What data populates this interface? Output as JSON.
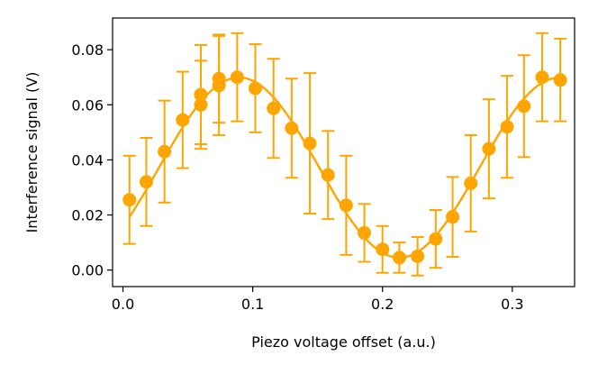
{
  "chart_data": {
    "type": "scatter",
    "title": "",
    "xlabel": "Piezo voltage offset (a.u.)",
    "ylabel": "Interference signal (V)",
    "xlim": [
      -0.008,
      0.348
    ],
    "ylim": [
      -0.006,
      0.0915
    ],
    "xticks": [
      0.0,
      0.1,
      0.2,
      0.3
    ],
    "xtick_labels": [
      "0.0",
      "0.1",
      "0.2",
      "0.3"
    ],
    "yticks": [
      0.0,
      0.02,
      0.04,
      0.06,
      0.08
    ],
    "ytick_labels": [
      "0.00",
      "0.02",
      "0.04",
      "0.06",
      "0.08"
    ],
    "grid": false,
    "legend": "none",
    "color": "#ffa500",
    "series": [
      {
        "x": [
          0.005,
          0.018,
          0.032,
          0.046,
          0.06,
          0.06,
          0.074,
          0.074,
          0.088,
          0.102,
          0.116,
          0.13,
          0.144,
          0.158,
          0.172,
          0.186,
          0.2,
          0.213,
          0.227,
          0.241,
          0.254,
          0.268,
          0.282,
          0.296,
          0.309,
          0.323,
          0.337
        ],
        "y": [
          0.0255,
          0.032,
          0.043,
          0.0545,
          0.06,
          0.0637,
          0.067,
          0.0695,
          0.07,
          0.066,
          0.0587,
          0.0515,
          0.046,
          0.0345,
          0.0235,
          0.0135,
          0.0075,
          0.0045,
          0.005,
          0.0113,
          0.0193,
          0.0315,
          0.044,
          0.052,
          0.0595,
          0.07,
          0.069
        ],
        "yerr": [
          0.016,
          0.016,
          0.0185,
          0.0175,
          0.016,
          0.018,
          0.018,
          0.016,
          0.016,
          0.016,
          0.018,
          0.018,
          0.0255,
          0.016,
          0.018,
          0.0105,
          0.0085,
          0.0055,
          0.007,
          0.0105,
          0.0145,
          0.0175,
          0.018,
          0.0185,
          0.0185,
          0.016,
          0.015
        ]
      }
    ],
    "fit_curve": {
      "model": "sinusoid",
      "amplitude": 0.0327,
      "offset": 0.0372,
      "period": 0.247,
      "peak_x": 0.0895
    }
  }
}
